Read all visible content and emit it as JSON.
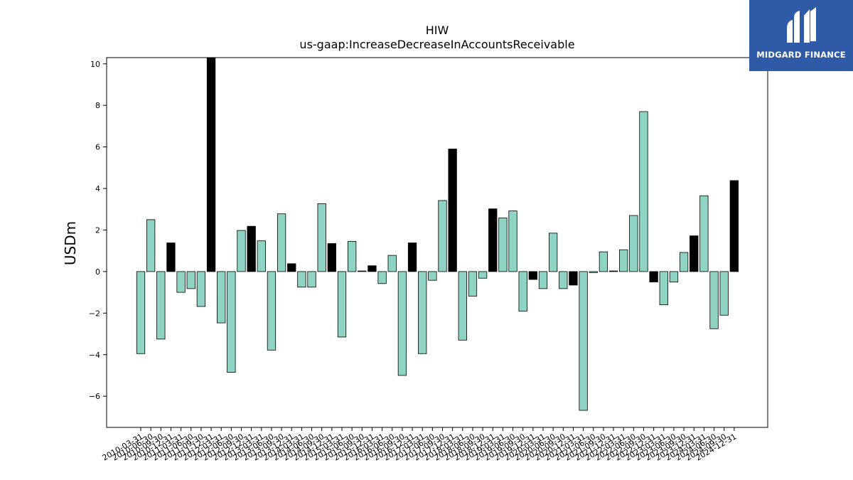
{
  "brand": {
    "name": "MIDGARD FINANCE"
  },
  "chart_data": {
    "type": "bar",
    "title": "HIW",
    "subtitle": "us-gaap:IncreaseDecreaseInAccountsReceivable",
    "ylabel": "USDm",
    "xlabel": "",
    "ylim": [
      -7.5,
      10.3
    ],
    "yticks": [
      -6,
      -4,
      -2,
      0,
      2,
      4,
      6,
      8,
      10
    ],
    "colors": {
      "quarter": "#8fd3c5",
      "year_end": "#000000",
      "edge": "#000000"
    },
    "categories": [
      "2010-03-31",
      "2010-06-30",
      "2010-09-30",
      "2010-12-31",
      "2011-03-31",
      "2011-06-30",
      "2011-09-30",
      "2011-12-31",
      "2012-03-31",
      "2012-06-30",
      "2012-09-30",
      "2012-12-31",
      "2013-03-31",
      "2013-06-30",
      "2013-09-30",
      "2013-12-31",
      "2014-03-31",
      "2014-06-30",
      "2014-09-30",
      "2014-12-31",
      "2015-03-31",
      "2015-06-30",
      "2015-09-30",
      "2015-12-31",
      "2016-03-31",
      "2016-06-30",
      "2016-09-30",
      "2016-12-31",
      "2017-03-31",
      "2017-06-30",
      "2017-09-30",
      "2017-12-31",
      "2018-03-31",
      "2018-06-30",
      "2018-09-30",
      "2018-12-31",
      "2019-03-31",
      "2019-06-30",
      "2019-09-30",
      "2019-12-31",
      "2020-03-31",
      "2020-06-30",
      "2020-09-30",
      "2020-12-31",
      "2021-03-31",
      "2021-06-30",
      "2021-09-30",
      "2021-12-31",
      "2022-03-31",
      "2022-06-30",
      "2022-09-30",
      "2022-12-31",
      "2023-03-31",
      "2023-06-30",
      "2023-09-30",
      "2023-12-31",
      "2024-03-31",
      "2024-06-30",
      "2024-09-30",
      "2024-12-31"
    ],
    "values": [
      -3.95,
      2.5,
      -3.25,
      1.38,
      -1.0,
      -0.82,
      -1.68,
      10.3,
      -2.47,
      -4.85,
      1.98,
      2.18,
      1.48,
      -3.78,
      2.78,
      0.38,
      -0.75,
      -0.75,
      3.27,
      1.35,
      -3.15,
      1.45,
      0.03,
      0.28,
      -0.58,
      0.78,
      -5.0,
      1.38,
      -3.95,
      -0.42,
      3.42,
      5.9,
      -3.3,
      -1.18,
      -0.32,
      3.02,
      2.58,
      2.92,
      -1.9,
      -0.38,
      -0.82,
      1.85,
      -0.82,
      -0.65,
      -6.68,
      -0.05,
      0.95,
      0.03,
      1.05,
      2.7,
      7.7,
      -0.5,
      -1.6,
      -0.5,
      0.92,
      1.72,
      3.65,
      -2.75,
      -2.1,
      4.38
    ],
    "year_end_flags": [
      false,
      false,
      false,
      true,
      false,
      false,
      false,
      true,
      false,
      false,
      false,
      true,
      false,
      false,
      false,
      true,
      false,
      false,
      false,
      true,
      false,
      false,
      false,
      true,
      false,
      false,
      false,
      true,
      false,
      false,
      false,
      true,
      false,
      false,
      false,
      true,
      false,
      false,
      false,
      true,
      false,
      false,
      false,
      true,
      false,
      false,
      false,
      true,
      false,
      false,
      false,
      true,
      false,
      false,
      false,
      true,
      false,
      false,
      false,
      true
    ]
  }
}
